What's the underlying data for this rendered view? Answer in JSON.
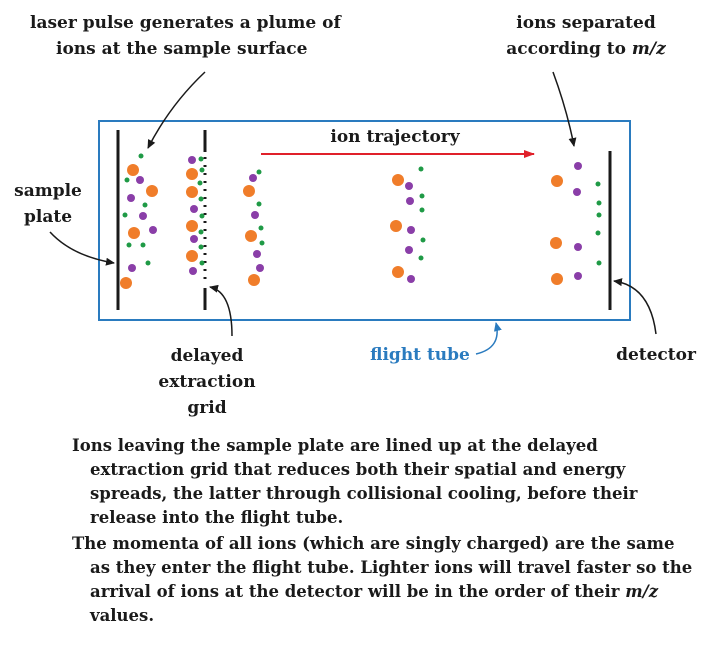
{
  "labels": {
    "laser_line1": "laser pulse generates a plume of",
    "laser_line2": "ions at the sample surface",
    "separated_line1": "ions separated",
    "separated_line2_prefix": "according to ",
    "separated_mz": "m/z",
    "trajectory": "ion trajectory",
    "sample_line1": "sample",
    "sample_line2": "plate",
    "grid_line1": "delayed",
    "grid_line2": "extraction",
    "grid_line3": "grid",
    "flight_tube": "flight tube",
    "detector": "detector"
  },
  "caption": {
    "para1": "Ions leaving the sample plate are lined up at the delayed extraction grid that reduces both their spatial and energy spreads, the latter through collisional cooling, before their release into the flight tube.",
    "para2_before": "The momenta of all ions (which are singly charged) are the same as they enter the flight tube. Lighter ions will travel faster so the arrival of ions at the detector will be in the order of their ",
    "para2_mz": "m/z",
    "para2_after": " values."
  },
  "colors": {
    "tube_border": "#2a7bbf",
    "arrow_red": "#e0202a",
    "ion_heavy": "#f07d2a",
    "ion_medium": "#8a3ea8",
    "ion_light": "#1f9a46",
    "flight_tube_text": "#2a7bbf"
  }
}
